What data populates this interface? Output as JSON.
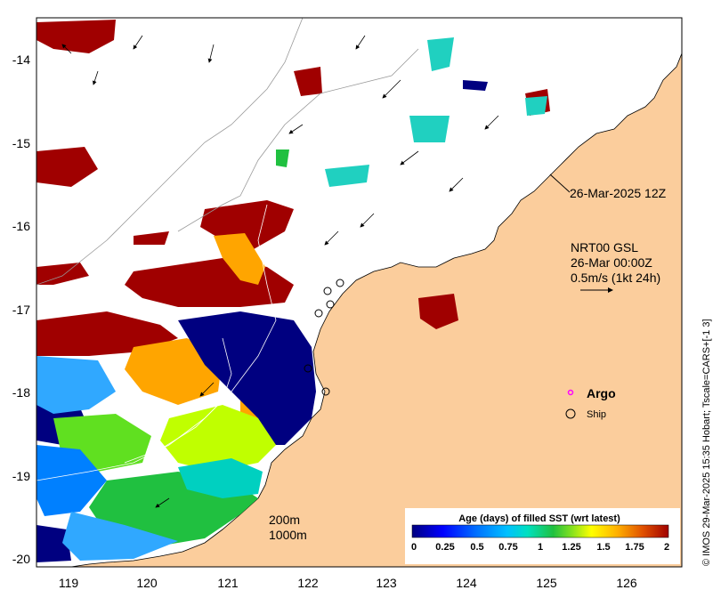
{
  "map": {
    "lon_ticks": [
      "119",
      "120",
      "121",
      "122",
      "123",
      "124",
      "125",
      "126"
    ],
    "lat_ticks": [
      "-14",
      "-15",
      "-16",
      "-17",
      "-18",
      "-19",
      "-20"
    ],
    "timestamp_label": "26-Mar-2025 12Z",
    "current_title": "NRT00 GSL",
    "current_time": "26-Mar 00:00Z",
    "current_scale": "0.5m/s (1kt 24h)",
    "legend_argo": "Argo",
    "legend_ship": "Ship",
    "contour_200": "200m",
    "contour_1000": "1000m",
    "colorbar_title": "Age (days) of filled SST (wrt latest)",
    "colorbar_ticks": [
      "0",
      "0.25",
      "0.5",
      "0.75",
      "1",
      "1.25",
      "1.5",
      "1.75",
      "2"
    ],
    "credit": "© IMOS 29-Mar-2025 15:35 Hobart; Tscale=CARS+[-1 3]",
    "colors": {
      "land": "#fbcd9c",
      "age_2": "#a00000",
      "age_0": "#000080",
      "argo": "#ff00ff"
    },
    "icons": [
      "argo-marker-icon",
      "ship-marker-icon",
      "current-arrow-icon"
    ]
  }
}
